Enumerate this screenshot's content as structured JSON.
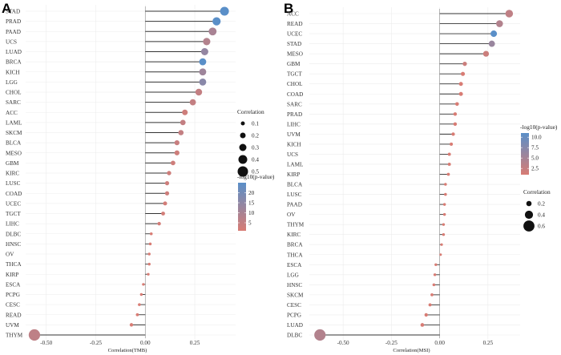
{
  "chart_data": [
    {
      "panel": "A",
      "type": "lollipop",
      "xlabel": "Correlation(TMB)",
      "xlim": [
        -0.58,
        0.44
      ],
      "xticks": [
        -0.5,
        -0.25,
        0.0,
        0.25
      ],
      "xtick_labels": [
        "-0.50",
        "-0.25",
        "0.00",
        "0.25"
      ],
      "categories": [
        "STAD",
        "PRAD",
        "PAAD",
        "UCS",
        "LUAD",
        "BRCA",
        "KICH",
        "LGG",
        "CHOL",
        "SARC",
        "ACC",
        "LAML",
        "SKCM",
        "BLCA",
        "MESO",
        "GBM",
        "KIRC",
        "LUSC",
        "COAD",
        "UCEC",
        "TGCT",
        "LIHC",
        "DLBC",
        "HNSC",
        "OV",
        "THCA",
        "KIRP",
        "ESCA",
        "PCPG",
        "CESC",
        "READ",
        "UVM",
        "THYM"
      ],
      "values": [
        0.4,
        0.36,
        0.34,
        0.31,
        0.3,
        0.29,
        0.29,
        0.29,
        0.27,
        0.24,
        0.2,
        0.19,
        0.18,
        0.16,
        0.16,
        0.14,
        0.12,
        0.11,
        0.11,
        0.1,
        0.09,
        0.07,
        0.03,
        0.025,
        0.02,
        0.02,
        0.015,
        -0.01,
        -0.02,
        -0.03,
        -0.04,
        -0.07,
        -0.56
      ],
      "neglog10p": [
        30,
        28,
        10,
        8,
        14,
        25,
        12,
        16,
        5,
        5,
        3,
        5,
        5,
        4,
        3,
        3,
        3,
        3,
        3,
        2,
        2,
        2,
        1,
        1,
        1,
        1,
        1,
        1,
        1,
        1,
        1,
        1,
        6
      ],
      "legend_color": {
        "title": "-log10(p-value)",
        "ticks": [
          20,
          15,
          10,
          5
        ],
        "min": 1,
        "max": 25,
        "low": "#d87c74",
        "high": "#5a8fc8"
      },
      "legend_size": {
        "title": "Correlation",
        "values": [
          0.1,
          0.2,
          0.3,
          0.4,
          0.5
        ],
        "labels": [
          "0.1",
          "0.2",
          "0.3",
          "0.4",
          "0.5"
        ]
      }
    },
    {
      "panel": "B",
      "type": "lollipop",
      "xlabel": "Correlation(MSI)",
      "xlim": [
        -0.65,
        0.4
      ],
      "xticks": [
        -0.5,
        -0.25,
        0.0,
        0.25
      ],
      "xtick_labels": [
        "-0.50",
        "-0.25",
        "0.00",
        "0.25"
      ],
      "categories": [
        "ACC",
        "READ",
        "UCEC",
        "STAD",
        "MESO",
        "GBM",
        "TGCT",
        "CHOL",
        "COAD",
        "SARC",
        "PRAD",
        "LIHC",
        "UVM",
        "KICH",
        "UCS",
        "LAML",
        "KIRP",
        "BLCA",
        "LUSC",
        "PAAD",
        "OV",
        "THYM",
        "KIRC",
        "BRCA",
        "THCA",
        "ESCA",
        "LGG",
        "HNSC",
        "SKCM",
        "CESC",
        "PCPG",
        "LUAD",
        "DLBC"
      ],
      "values": [
        0.36,
        0.31,
        0.28,
        0.27,
        0.24,
        0.13,
        0.12,
        0.11,
        0.11,
        0.09,
        0.08,
        0.08,
        0.07,
        0.06,
        0.05,
        0.05,
        0.045,
        0.03,
        0.03,
        0.025,
        0.025,
        0.02,
        0.02,
        0.01,
        0.005,
        -0.02,
        -0.025,
        -0.03,
        -0.04,
        -0.05,
        -0.07,
        -0.09,
        -0.62
      ],
      "neglog10p": [
        3,
        4,
        11,
        6,
        2,
        2,
        1,
        1,
        1,
        1,
        1,
        1,
        1,
        1,
        1,
        1,
        1,
        1,
        1,
        1,
        1,
        1,
        1,
        1,
        1,
        1,
        1,
        1,
        1,
        1,
        1,
        1,
        4
      ],
      "legend_color": {
        "title": "-log10(p-value)",
        "ticks": [
          10.0,
          7.5,
          5.0,
          2.5
        ],
        "tick_labels": [
          "10.0",
          "7.5",
          "5.0",
          "2.5"
        ],
        "min": 1,
        "max": 11,
        "low": "#d87c74",
        "high": "#5a8fc8"
      },
      "legend_size": {
        "title": "Correlation",
        "values": [
          0.2,
          0.4,
          0.6
        ],
        "labels": [
          "0.2",
          "0.4",
          "0.6"
        ]
      }
    }
  ]
}
